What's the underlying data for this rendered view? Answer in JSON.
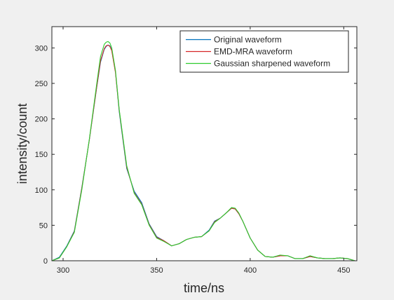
{
  "colors": {
    "figure_bg": "#f0f0f0",
    "axes_bg": "#ffffff",
    "axis": "#262626"
  },
  "chart_data": {
    "type": "line",
    "xlabel": "time/ns",
    "ylabel": "intensity/count",
    "xlim": [
      294,
      457
    ],
    "ylim": [
      0,
      330
    ],
    "xticks": [
      300,
      350,
      400,
      450
    ],
    "yticks": [
      0,
      50,
      100,
      150,
      200,
      250,
      300
    ],
    "grid": false,
    "legend_position": "top-right",
    "x": [
      294,
      298,
      302,
      306,
      310,
      314,
      318,
      320,
      322,
      323,
      324,
      325,
      326,
      328,
      330,
      334,
      338,
      342,
      346,
      350,
      354,
      358,
      362,
      366,
      370,
      374,
      378,
      381,
      384,
      387,
      390,
      392,
      394,
      396,
      400,
      404,
      408,
      412,
      416,
      420,
      424,
      428,
      432,
      436,
      440,
      444,
      448,
      452,
      456,
      457
    ],
    "series": [
      {
        "name": "Original waveform",
        "color": "#0072bd",
        "values": [
          0,
          5,
          21,
          42,
          103,
          170,
          245,
          280,
          298,
          302,
          304,
          303,
          297,
          266,
          210,
          130,
          98,
          82,
          52,
          34,
          28,
          21,
          24,
          30,
          33,
          34,
          43,
          56,
          60,
          67,
          74,
          73,
          66,
          56,
          32,
          15,
          6,
          5,
          7,
          7,
          3,
          3,
          6,
          4,
          3,
          3,
          4,
          3,
          0,
          0
        ]
      },
      {
        "name": "EMD-MRA waveform",
        "color": "#d62728",
        "values": [
          0,
          4,
          20,
          41,
          102,
          170,
          246,
          282,
          299,
          303,
          304,
          302,
          296,
          265,
          212,
          132,
          96,
          80,
          51,
          33,
          28,
          21,
          24,
          30,
          33,
          34,
          42,
          55,
          60,
          67,
          74,
          73,
          66,
          56,
          32,
          15,
          6,
          5,
          7,
          7,
          3,
          3,
          6,
          4,
          3,
          3,
          4,
          3,
          0,
          0
        ]
      },
      {
        "name": "Gaussian sharpened waveform",
        "color": "#2ecc2e",
        "values": [
          0,
          4,
          20,
          40,
          100,
          171,
          250,
          288,
          305,
          308,
          309,
          307,
          300,
          268,
          213,
          134,
          95,
          79,
          50,
          32,
          27,
          21,
          24,
          30,
          33,
          34,
          42,
          54,
          60,
          67,
          75,
          74,
          67,
          56,
          32,
          15,
          6,
          5,
          8,
          7,
          3,
          3,
          7,
          4,
          3,
          3,
          4,
          3,
          0,
          0
        ]
      }
    ]
  }
}
